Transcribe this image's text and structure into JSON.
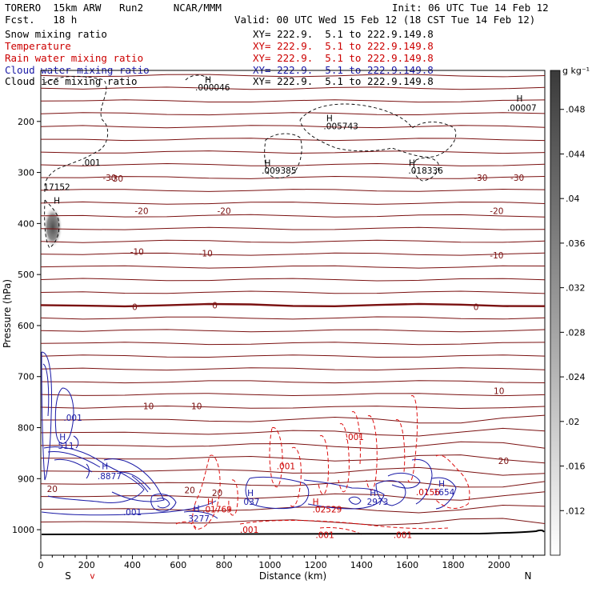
{
  "header": {
    "model": "TORERO  15km ARW   Run2     NCAR/MMM",
    "init": "Init: 06 UTC Tue 14 Feb 12",
    "fcst": "Fcst.   18 h",
    "valid": "Valid: 00 UTC Wed 15 Feb 12 (18 CST Tue 14 Feb 12)"
  },
  "fields": [
    {
      "name": "Snow mixing ratio",
      "xy": "XY= 222.9.  5.1 to 222.9.149.8",
      "color": "#000000"
    },
    {
      "name": "Temperature",
      "xy": "XY= 222.9.  5.1 to 222.9.149.8",
      "color": "#cc0000"
    },
    {
      "name": "Rain water mixing ratio",
      "xy": "XY= 222.9.  5.1 to 222.9.149.8",
      "color": "#cc0000"
    },
    {
      "name": "Cloud water mixing ratio",
      "xy": "XY= 222.9.  5.1 to 222.9.149.8",
      "color": "#1a1aa6"
    },
    {
      "name": "Cloud ice mixing ratio",
      "xy": "XY= 222.9.  5.1 to 222.9.149.8",
      "color": "#000000"
    }
  ],
  "chart_data": {
    "type": "contour-cross-section",
    "xlabel": "Distance (km)",
    "ylabel": "Pressure (hPa)",
    "xlim": [
      0,
      2200
    ],
    "ylim": [
      1050,
      100
    ],
    "x_ticks": [
      0,
      200,
      400,
      600,
      800,
      1000,
      1200,
      1400,
      1600,
      1800,
      2000
    ],
    "y_ticks": [
      200,
      300,
      400,
      500,
      600,
      700,
      800,
      900,
      1000
    ],
    "end_labels": {
      "left": "S",
      "right": "N"
    },
    "colorbar": {
      "unit": "g kg⁻¹",
      "ticks": [
        ".012",
        ".016",
        ".02",
        ".024",
        ".028",
        ".032",
        ".036",
        ".04",
        ".044",
        ".048"
      ]
    },
    "temperature_labels": [
      {
        "text": "-30",
        "x": 330,
        "p": 312
      },
      {
        "text": "-30",
        "x": 1920,
        "p": 310
      },
      {
        "text": "-30",
        "x": 2080,
        "p": 310
      },
      {
        "text": "-30",
        "x": 300,
        "p": 310
      },
      {
        "text": "-20",
        "x": 440,
        "p": 375
      },
      {
        "text": "-20",
        "x": 800,
        "p": 375
      },
      {
        "text": "-20",
        "x": 1990,
        "p": 375
      },
      {
        "text": "-10",
        "x": 420,
        "p": 455
      },
      {
        "text": "-10",
        "x": 720,
        "p": 458
      },
      {
        "text": "-10",
        "x": 1990,
        "p": 462
      },
      {
        "text": "0",
        "x": 410,
        "p": 563
      },
      {
        "text": "0",
        "x": 760,
        "p": 560
      },
      {
        "text": "0",
        "x": 1900,
        "p": 563
      },
      {
        "text": "10",
        "x": 470,
        "p": 758
      },
      {
        "text": "10",
        "x": 680,
        "p": 758
      },
      {
        "text": "10",
        "x": 2000,
        "p": 728
      },
      {
        "text": "20",
        "x": 2020,
        "p": 865
      },
      {
        "text": "20",
        "x": 650,
        "p": 922
      },
      {
        "text": "20",
        "x": 770,
        "p": 928
      },
      {
        "text": "20",
        "x": 50,
        "p": 920
      }
    ],
    "field_labels": [
      {
        "text": ".001",
        "x": 220,
        "p": 280,
        "color": "#000000"
      },
      {
        "text": "H",
        "x": 730,
        "p": 118,
        "color": "#000000"
      },
      {
        "text": ".000046",
        "x": 750,
        "p": 133,
        "color": "#000000"
      },
      {
        "text": "H",
        "x": 2090,
        "p": 155,
        "color": "#000000"
      },
      {
        "text": ".00007",
        "x": 2100,
        "p": 173,
        "color": "#000000"
      },
      {
        "text": "H",
        "x": 1260,
        "p": 193,
        "color": "#000000"
      },
      {
        "text": ".005743",
        "x": 1310,
        "p": 209,
        "color": "#000000"
      },
      {
        "text": "H",
        "x": 990,
        "p": 281,
        "color": "#000000"
      },
      {
        "text": ".009385",
        "x": 1040,
        "p": 296,
        "color": "#000000"
      },
      {
        "text": "H",
        "x": 1620,
        "p": 281,
        "color": "#000000"
      },
      {
        "text": ".018336",
        "x": 1680,
        "p": 296,
        "color": "#000000"
      },
      {
        "text": "17152",
        "x": 70,
        "p": 328,
        "color": "#000000"
      },
      {
        "text": "H",
        "x": 70,
        "p": 355,
        "color": "#000000"
      },
      {
        "text": ".001",
        "x": 140,
        "p": 780,
        "color": "#1a1aa6"
      },
      {
        "text": "H",
        "x": 95,
        "p": 818,
        "color": "#1a1aa6"
      },
      {
        "text": "511",
        "x": 110,
        "p": 835,
        "color": "#1a1aa6"
      },
      {
        "text": "H",
        "x": 280,
        "p": 875,
        "color": "#1a1aa6"
      },
      {
        "text": ".8877",
        "x": 300,
        "p": 895,
        "color": "#1a1aa6"
      },
      {
        "text": ".001",
        "x": 400,
        "p": 965,
        "color": "#1a1aa6"
      },
      {
        "text": "H",
        "x": 680,
        "p": 958,
        "color": "#1a1aa6"
      },
      {
        "text": "3277",
        "x": 690,
        "p": 978,
        "color": "#1a1aa6"
      },
      {
        "text": "H",
        "x": 915,
        "p": 928,
        "color": "#1a1aa6"
      },
      {
        "text": "037",
        "x": 920,
        "p": 945,
        "color": "#1a1aa6"
      },
      {
        "text": "H",
        "x": 1450,
        "p": 928,
        "color": "#1a1aa6"
      },
      {
        "text": "2973",
        "x": 1470,
        "p": 945,
        "color": "#1a1aa6"
      },
      {
        "text": "H",
        "x": 1750,
        "p": 910,
        "color": "#1a1aa6"
      },
      {
        "text": "1654",
        "x": 1760,
        "p": 926,
        "color": "#1a1aa6"
      },
      {
        "text": ".001",
        "x": 1370,
        "p": 818,
        "color": "#cc0000"
      },
      {
        "text": ".001",
        "x": 1070,
        "p": 875,
        "color": "#cc0000"
      },
      {
        "text": "H",
        "x": 740,
        "p": 945,
        "color": "#cc0000"
      },
      {
        "text": ".01769",
        "x": 770,
        "p": 960,
        "color": "#cc0000"
      },
      {
        "text": "H",
        "x": 1200,
        "p": 945,
        "color": "#cc0000"
      },
      {
        "text": ".02529",
        "x": 1250,
        "p": 960,
        "color": "#cc0000"
      },
      {
        "text": ".0156",
        "x": 1690,
        "p": 926,
        "color": "#cc0000"
      },
      {
        "text": ".001",
        "x": 910,
        "p": 1000,
        "color": "#cc0000"
      },
      {
        "text": ".001",
        "x": 1240,
        "p": 1010,
        "color": "#cc0000"
      },
      {
        "text": ".001",
        "x": 1580,
        "p": 1010,
        "color": "#cc0000"
      },
      {
        "text": "v",
        "x": 225,
        "p": 1090,
        "color": "#cc0000"
      }
    ]
  }
}
